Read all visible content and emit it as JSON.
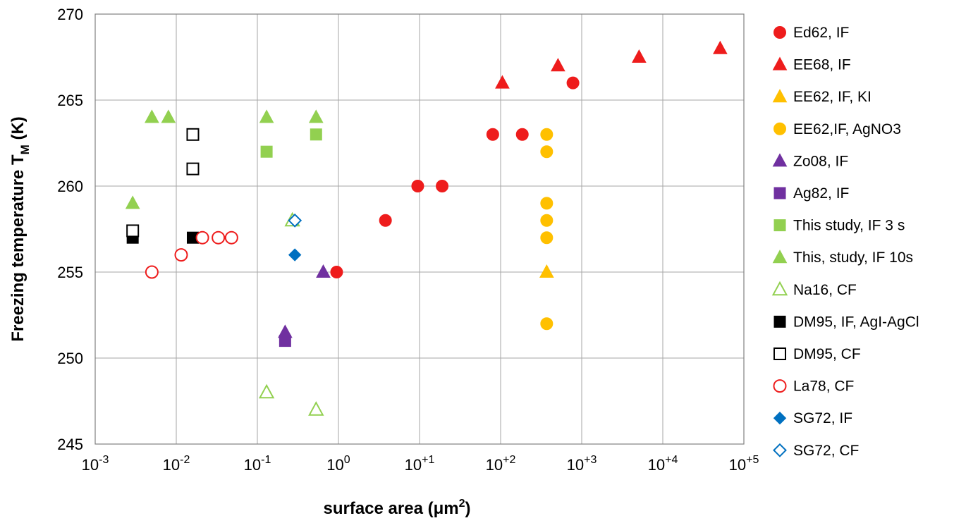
{
  "chart_data": {
    "type": "scatter",
    "ylabel": "Freezing temperature T",
    "ylabel_sub": "M",
    "ylabel_suffix": " (K)",
    "xlabel_main": "surface area (μm",
    "xlabel_sup": "2",
    "xlabel_end": ")",
    "x_scale": "log",
    "xlim": [
      0.001,
      100000
    ],
    "ylim": [
      245,
      270
    ],
    "grid": true,
    "legend_position": "right",
    "x_ticks": [
      {
        "base": "10",
        "exp": "-3",
        "value": 0.001
      },
      {
        "base": "10",
        "exp": "-2",
        "value": 0.01
      },
      {
        "base": "10",
        "exp": "-1",
        "value": 0.1
      },
      {
        "base": "10",
        "exp": "0",
        "value": 1
      },
      {
        "base": "10",
        "exp": "+1",
        "value": 10
      },
      {
        "base": "10",
        "exp": "+2",
        "value": 100
      },
      {
        "base": "10",
        "exp": "+3",
        "value": 1000
      },
      {
        "base": "10",
        "exp": "+4",
        "value": 10000
      },
      {
        "base": "10",
        "exp": "+5",
        "value": 100000
      }
    ],
    "y_ticks": [
      "245",
      "250",
      "255",
      "260",
      "265",
      "270"
    ],
    "series": [
      {
        "name": "Ed62, IF",
        "marker": "circle",
        "filled": true,
        "color": "#ee1c1c",
        "points": [
          [
            0.95,
            255
          ],
          [
            3.8,
            258
          ],
          [
            9.5,
            260
          ],
          [
            19,
            260
          ],
          [
            80,
            263
          ],
          [
            185,
            263
          ],
          [
            780,
            266
          ]
        ]
      },
      {
        "name": "EE68, IF",
        "marker": "triangle",
        "filled": true,
        "color": "#ee1c1c",
        "points": [
          [
            105,
            266
          ],
          [
            510,
            267
          ],
          [
            5100,
            267.5
          ],
          [
            51000,
            268
          ]
        ]
      },
      {
        "name": "EE62, IF, KI",
        "marker": "triangle",
        "filled": true,
        "color": "#ffc000",
        "points": [
          [
            370,
            255
          ]
        ]
      },
      {
        "name": "EE62,IF, AgNO3",
        "marker": "circle",
        "filled": true,
        "color": "#ffc000",
        "points": [
          [
            370,
            263
          ],
          [
            370,
            262
          ],
          [
            370,
            259
          ],
          [
            370,
            258
          ],
          [
            370,
            257
          ],
          [
            370,
            252
          ]
        ]
      },
      {
        "name": "Zo08, IF",
        "marker": "triangle",
        "filled": true,
        "color": "#7030a0",
        "points": [
          [
            0.22,
            251.5
          ],
          [
            0.65,
            255
          ]
        ]
      },
      {
        "name": "Ag82, IF",
        "marker": "square",
        "filled": true,
        "color": "#7030a0",
        "points": [
          [
            0.22,
            251
          ]
        ]
      },
      {
        "name": "This study, IF 3 s",
        "marker": "square",
        "filled": true,
        "color": "#92d050",
        "points": [
          [
            0.13,
            262
          ],
          [
            0.53,
            263
          ]
        ]
      },
      {
        "name": "This, study, IF 10s",
        "marker": "triangle",
        "filled": true,
        "color": "#92d050",
        "points": [
          [
            0.0029,
            259
          ],
          [
            0.005,
            264
          ],
          [
            0.008,
            264
          ],
          [
            0.13,
            264
          ],
          [
            0.53,
            264
          ]
        ]
      },
      {
        "name": "Na16, CF",
        "marker": "triangle",
        "filled": false,
        "color": "#92d050",
        "points": [
          [
            0.13,
            248
          ],
          [
            0.27,
            258
          ],
          [
            0.53,
            247
          ]
        ]
      },
      {
        "name": "DM95, IF, AgI-AgCl",
        "marker": "square",
        "filled": true,
        "color": "#000000",
        "points": [
          [
            0.0029,
            257
          ],
          [
            0.016,
            257
          ]
        ]
      },
      {
        "name": "DM95, CF",
        "marker": "square",
        "filled": false,
        "color": "#000000",
        "points": [
          [
            0.0029,
            257.4
          ],
          [
            0.016,
            263
          ],
          [
            0.016,
            261
          ]
        ]
      },
      {
        "name": "La78, CF",
        "marker": "circle",
        "filled": false,
        "color": "#ee1c1c",
        "points": [
          [
            0.005,
            255
          ],
          [
            0.0115,
            256
          ],
          [
            0.021,
            257
          ],
          [
            0.033,
            257
          ],
          [
            0.048,
            257
          ]
        ]
      },
      {
        "name": "SG72, IF",
        "marker": "diamond",
        "filled": true,
        "color": "#0070c0",
        "points": [
          [
            0.29,
            256
          ]
        ]
      },
      {
        "name": "SG72, CF",
        "marker": "diamond",
        "filled": false,
        "color": "#0070c0",
        "points": [
          [
            0.29,
            258
          ]
        ]
      }
    ]
  }
}
